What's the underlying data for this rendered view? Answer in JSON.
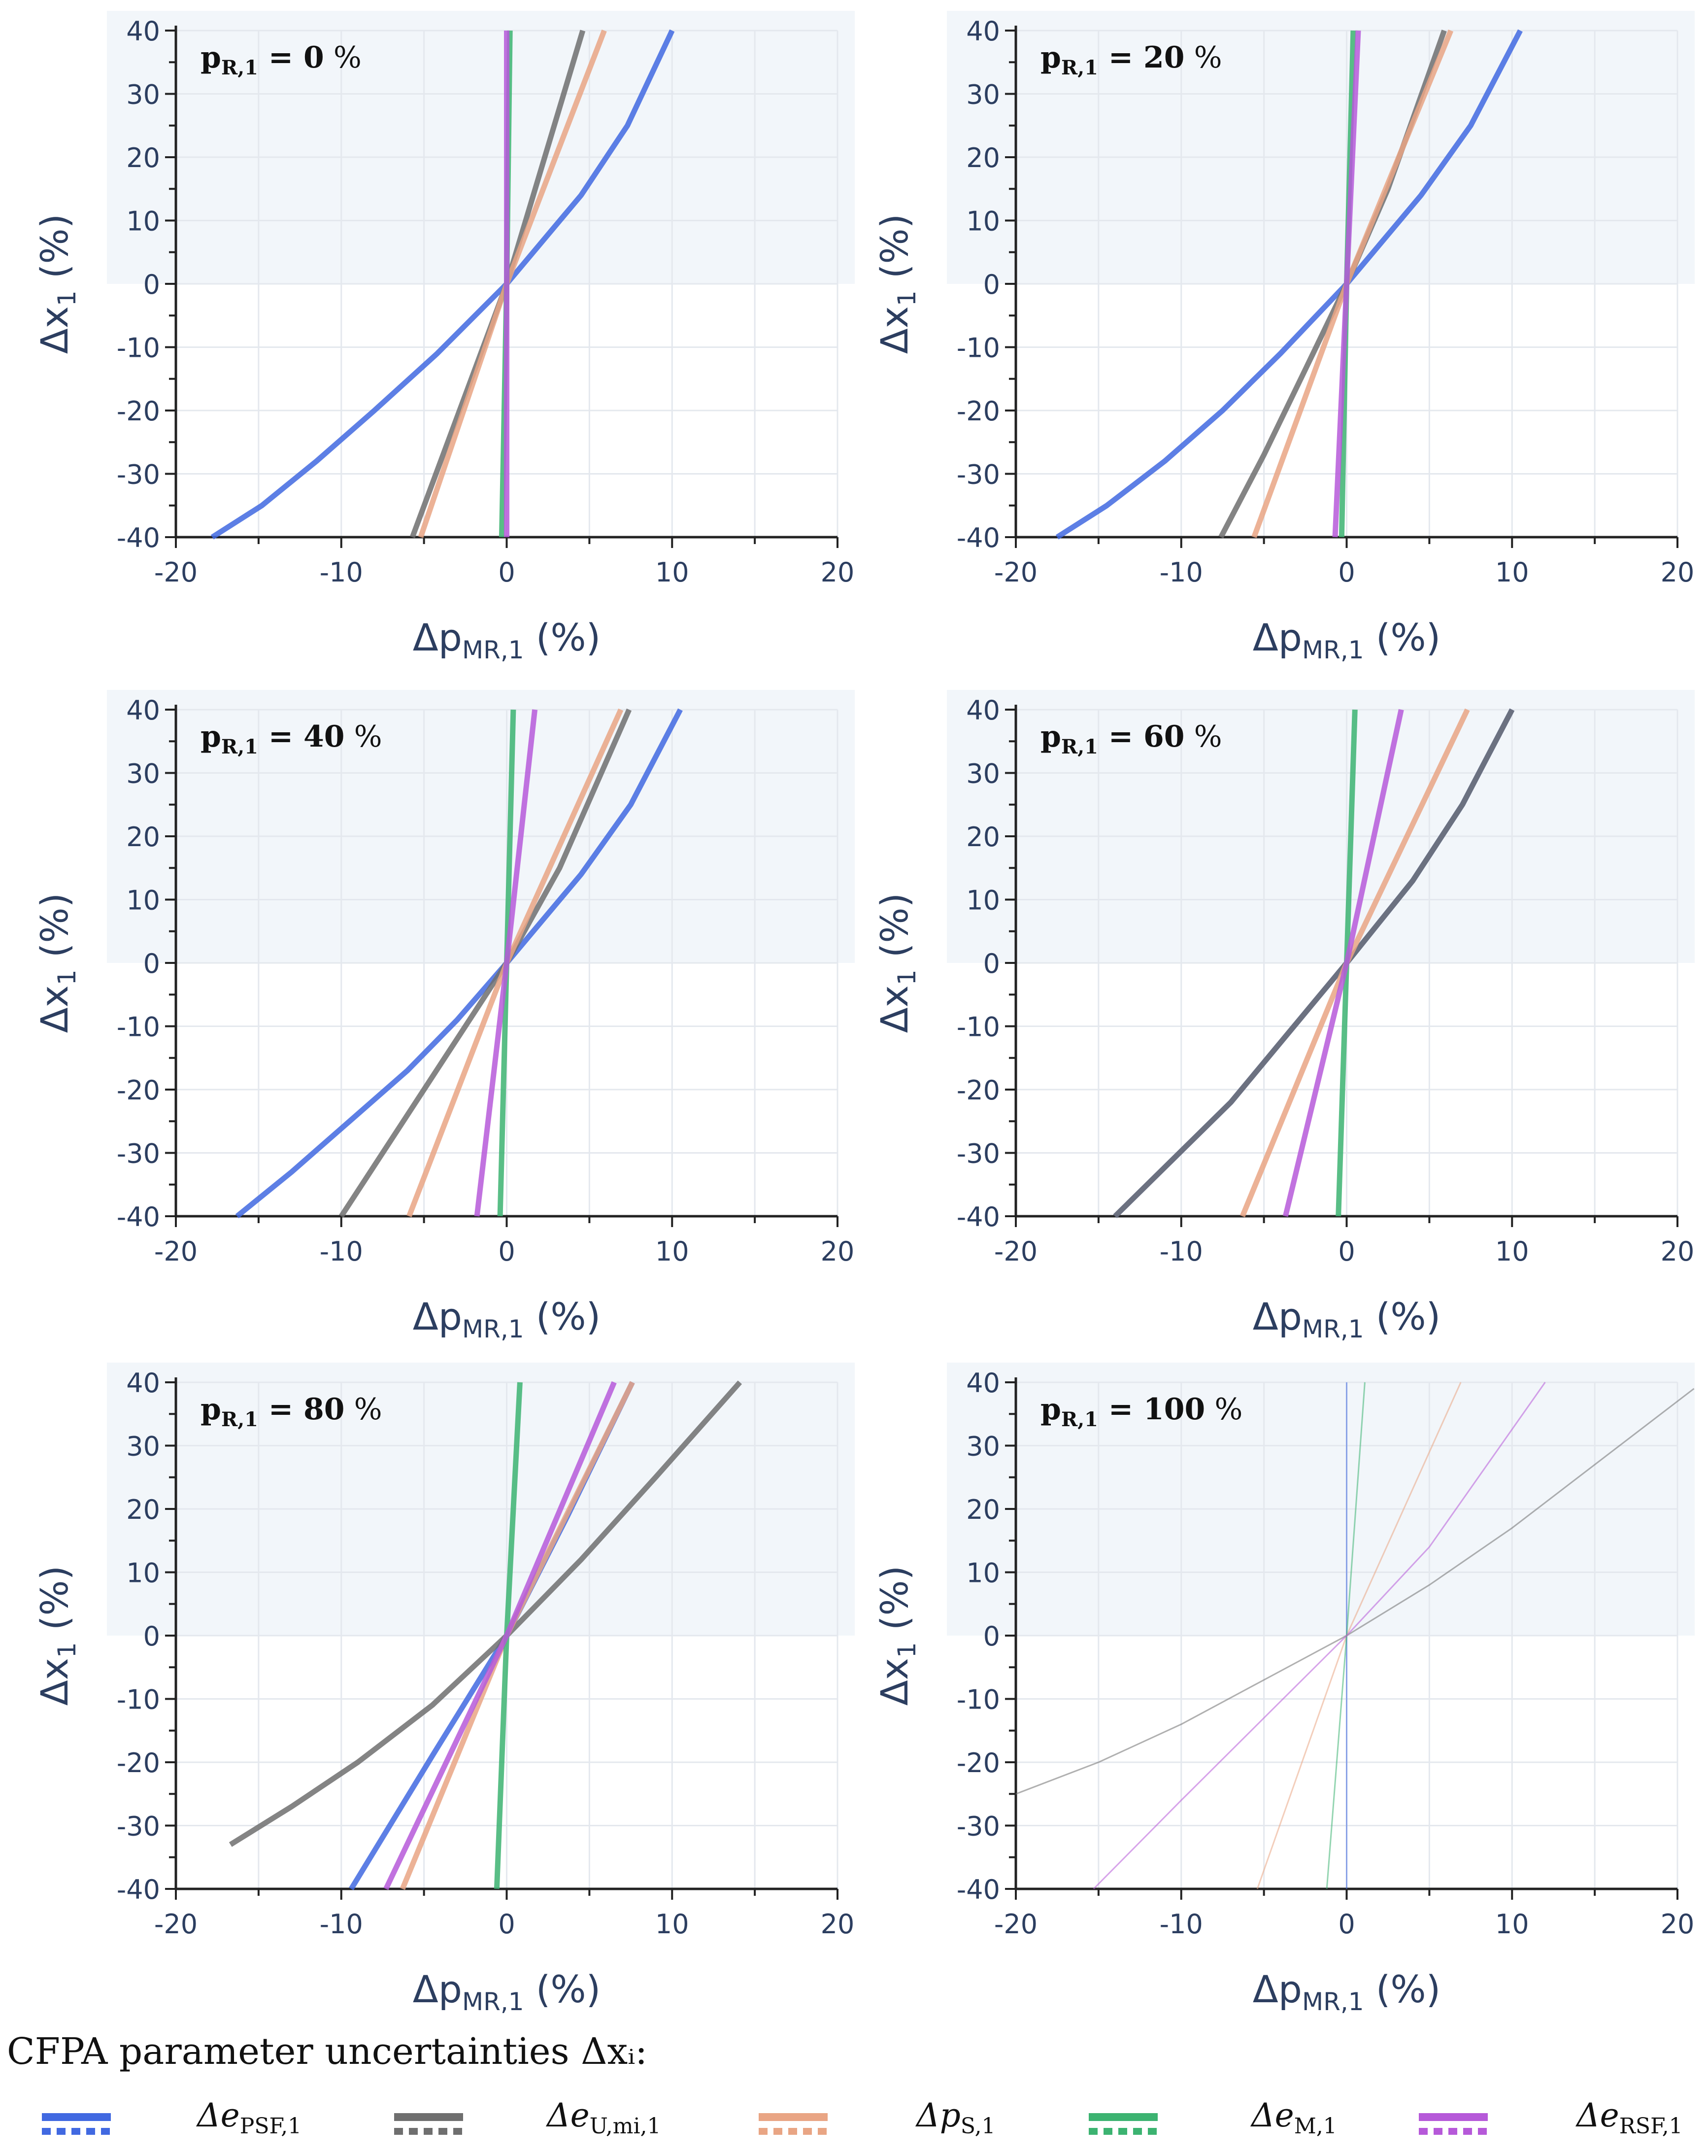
{
  "chart_data": [
    {
      "type": "line",
      "panel_label": "p_R,1 = 0 %",
      "label_main": "p",
      "label_sub": "R,1",
      "label_value": " = 0",
      "label_unit": " %",
      "xlabel": "Δp_MR,1 (%)",
      "ylabel": "Δx_1 (%)",
      "xlim": [
        -20,
        20
      ],
      "ylim": [
        -40,
        40
      ],
      "xticks": [
        "-20",
        "-10",
        "0",
        "10",
        "20"
      ],
      "yticks": [
        "40",
        "30",
        "20",
        "10",
        "0",
        "-10",
        "-20",
        "-30",
        "-40"
      ],
      "series": [
        {
          "name": "Δe_PSF,1",
          "color": "#4169e1",
          "x": [
            -17.8,
            -14.8,
            -11.5,
            -8,
            -4.2,
            0,
            4.5,
            7.3,
            10
          ],
          "y": [
            -40,
            -35,
            -28,
            -20,
            -11,
            0,
            14,
            25,
            40
          ]
        },
        {
          "name": "Δe_U,mi,1",
          "color": "#6f6f6f",
          "x": [
            -5.7,
            0,
            4.6
          ],
          "y": [
            -40,
            0,
            40
          ]
        },
        {
          "name": "Δp_S,1",
          "color": "#e9a584",
          "x": [
            -5.2,
            0,
            5.9
          ],
          "y": [
            -40,
            0,
            40
          ]
        },
        {
          "name": "Δe_M,1",
          "color": "#3cb371",
          "x": [
            -0.3,
            0,
            0.2
          ],
          "y": [
            -40,
            0,
            40
          ]
        },
        {
          "name": "Δe_RSF,1",
          "color": "#b659d9",
          "x": [
            0,
            0,
            0
          ],
          "y": [
            -40,
            0,
            40
          ]
        }
      ]
    },
    {
      "type": "line",
      "panel_label": "p_R,1 = 20 %",
      "label_main": "p",
      "label_sub": "R,1",
      "label_value": " = 20",
      "label_unit": " %",
      "xlabel": "Δp_MR,1 (%)",
      "ylabel": "Δx_1 (%)",
      "xlim": [
        -20,
        20
      ],
      "ylim": [
        -40,
        40
      ],
      "xticks": [
        "-20",
        "-10",
        "0",
        "10",
        "20"
      ],
      "yticks": [
        "40",
        "30",
        "20",
        "10",
        "0",
        "-10",
        "-20",
        "-30",
        "-40"
      ],
      "series": [
        {
          "name": "Δe_PSF,1",
          "color": "#4169e1",
          "x": [
            -17.5,
            -14.5,
            -11,
            -7.5,
            -4,
            0,
            4.5,
            7.5,
            10.5
          ],
          "y": [
            -40,
            -35,
            -28,
            -20,
            -11,
            0,
            14,
            25,
            40
          ]
        },
        {
          "name": "Δe_U,mi,1",
          "color": "#6f6f6f",
          "x": [
            -7.6,
            -5,
            -2.4,
            0,
            2.5,
            5.9
          ],
          "y": [
            -40,
            -27,
            -13,
            0,
            15,
            40
          ]
        },
        {
          "name": "Δp_S,1",
          "color": "#e9a584",
          "x": [
            -5.6,
            0,
            6.3
          ],
          "y": [
            -40,
            0,
            40
          ]
        },
        {
          "name": "Δe_M,1",
          "color": "#3cb371",
          "x": [
            -0.3,
            0,
            0.4
          ],
          "y": [
            -40,
            0,
            40
          ]
        },
        {
          "name": "Δe_RSF,1",
          "color": "#b659d9",
          "x": [
            -0.7,
            0,
            0.7
          ],
          "y": [
            -40,
            0,
            40
          ]
        }
      ]
    },
    {
      "type": "line",
      "panel_label": "p_R,1 = 40 %",
      "label_main": "p",
      "label_sub": "R,1",
      "label_value": " = 40",
      "label_unit": " %",
      "xlabel": "Δp_MR,1 (%)",
      "ylabel": "Δx_1 (%)",
      "xlim": [
        -20,
        20
      ],
      "ylim": [
        -40,
        40
      ],
      "xticks": [
        "-20",
        "-10",
        "0",
        "10",
        "20"
      ],
      "yticks": [
        "40",
        "30",
        "20",
        "10",
        "0",
        "-10",
        "-20",
        "-30",
        "-40"
      ],
      "series": [
        {
          "name": "Δe_PSF,1",
          "color": "#4169e1",
          "x": [
            -16.3,
            -13,
            -9.5,
            -6,
            -3,
            0,
            4.5,
            7.5,
            10.5
          ],
          "y": [
            -40,
            -33,
            -25,
            -17,
            -9,
            0,
            14,
            25,
            40
          ]
        },
        {
          "name": "Δe_U,mi,1",
          "color": "#6f6f6f",
          "x": [
            -10,
            -6.5,
            -3,
            0,
            3.2,
            7.4
          ],
          "y": [
            -40,
            -26,
            -12,
            0,
            15,
            40
          ]
        },
        {
          "name": "Δp_S,1",
          "color": "#e9a584",
          "x": [
            -5.9,
            0,
            6.9
          ],
          "y": [
            -40,
            0,
            40
          ]
        },
        {
          "name": "Δe_M,1",
          "color": "#3cb371",
          "x": [
            -0.4,
            0,
            0.4
          ],
          "y": [
            -40,
            0,
            40
          ]
        },
        {
          "name": "Δe_RSF,1",
          "color": "#b659d9",
          "x": [
            -1.8,
            0,
            1.7
          ],
          "y": [
            -40,
            0,
            40
          ]
        }
      ]
    },
    {
      "type": "line",
      "panel_label": "p_R,1 = 60 %",
      "label_main": "p",
      "label_sub": "R,1",
      "label_value": " = 60",
      "label_unit": " %",
      "xlabel": "Δp_MR,1 (%)",
      "ylabel": "Δx_1 (%)",
      "xlim": [
        -20,
        20
      ],
      "ylim": [
        -40,
        40
      ],
      "xticks": [
        "-20",
        "-10",
        "0",
        "10",
        "20"
      ],
      "yticks": [
        "40",
        "30",
        "20",
        "10",
        "0",
        "-10",
        "-20",
        "-30",
        "-40"
      ],
      "series": [
        {
          "name": "Δe_PSF,1",
          "color": "#4169e1",
          "x": [
            -14,
            -10.5,
            -7,
            -3.5,
            0,
            4,
            7,
            10
          ],
          "y": [
            -40,
            -31,
            -22,
            -11,
            0,
            13,
            25,
            40
          ]
        },
        {
          "name": "Δe_U,mi,1",
          "color": "#6f6f6f",
          "x": [
            -14,
            -10.5,
            -7,
            -3.5,
            0,
            4,
            7,
            10
          ],
          "y": [
            -40,
            -31,
            -22,
            -11,
            0,
            13,
            25,
            40
          ]
        },
        {
          "name": "Δp_S,1",
          "color": "#e9a584",
          "x": [
            -6.3,
            0,
            7.3
          ],
          "y": [
            -40,
            0,
            40
          ]
        },
        {
          "name": "Δe_M,1",
          "color": "#3cb371",
          "x": [
            -0.5,
            0,
            0.5
          ],
          "y": [
            -40,
            0,
            40
          ]
        },
        {
          "name": "Δe_RSF,1",
          "color": "#b659d9",
          "x": [
            -3.7,
            0,
            3.3
          ],
          "y": [
            -40,
            0,
            40
          ]
        }
      ]
    },
    {
      "type": "line",
      "panel_label": "p_R,1 = 80 %",
      "label_main": "p",
      "label_sub": "R,1",
      "label_value": " = 80",
      "label_unit": " %",
      "xlabel": "Δp_MR,1 (%)",
      "ylabel": "Δx_1 (%)",
      "xlim": [
        -20,
        20
      ],
      "ylim": [
        -40,
        40
      ],
      "xticks": [
        "-20",
        "-10",
        "0",
        "10",
        "20"
      ],
      "yticks": [
        "40",
        "30",
        "20",
        "10",
        "0",
        "-10",
        "-20",
        "-30",
        "-40"
      ],
      "series": [
        {
          "name": "Δe_PSF,1",
          "color": "#4169e1",
          "x": [
            -9.4,
            -4.5,
            0,
            3.7,
            7.6
          ],
          "y": [
            -40,
            -19,
            0,
            19,
            40
          ]
        },
        {
          "name": "Δe_U,mi,1",
          "color": "#6f6f6f",
          "x": [
            -16.7,
            -13,
            -9,
            -4.5,
            0,
            4.5,
            9,
            14.1
          ],
          "y": [
            -33,
            -27,
            -20,
            -11,
            0,
            12,
            25,
            40
          ]
        },
        {
          "name": "Δp_S,1",
          "color": "#e9a584",
          "x": [
            -6.3,
            0,
            7.6
          ],
          "y": [
            -40,
            0,
            40
          ]
        },
        {
          "name": "Δe_M,1",
          "color": "#3cb371",
          "x": [
            -0.6,
            0,
            0.8
          ],
          "y": [
            -40,
            0,
            40
          ]
        },
        {
          "name": "Δe_RSF,1",
          "color": "#b659d9",
          "x": [
            -7.3,
            0,
            6.5
          ],
          "y": [
            -40,
            0,
            40
          ]
        }
      ]
    },
    {
      "type": "line",
      "panel_label": "p_R,1 = 100 %",
      "label_main": "p",
      "label_sub": "R,1",
      "label_value": " = 100",
      "label_unit": " %",
      "xlabel": "Δp_MR,1 (%)",
      "ylabel": "Δx_1 (%)",
      "xlim": [
        -20,
        20
      ],
      "ylim": [
        -40,
        40
      ],
      "xticks": [
        "-20",
        "-10",
        "0",
        "10",
        "20"
      ],
      "yticks": [
        "40",
        "30",
        "20",
        "10",
        "0",
        "-10",
        "-20",
        "-30",
        "-40"
      ],
      "faded": true,
      "series": [
        {
          "name": "Δe_PSF,1",
          "color": "#4169e1",
          "x": [
            0,
            0,
            0
          ],
          "y": [
            -40,
            0,
            40
          ]
        },
        {
          "name": "Δe_U,mi,1",
          "color": "#6f6f6f",
          "x": [
            -20,
            -15,
            -10,
            -5,
            0,
            5,
            10,
            15,
            21
          ],
          "y": [
            -25,
            -20,
            -14,
            -7,
            0,
            8,
            17,
            27,
            39
          ]
        },
        {
          "name": "Δp_S,1",
          "color": "#e9a584",
          "x": [
            -5.4,
            0,
            6.9
          ],
          "y": [
            -40,
            0,
            40
          ]
        },
        {
          "name": "Δe_M,1",
          "color": "#3cb371",
          "x": [
            -1.2,
            0,
            1.1
          ],
          "y": [
            -40,
            0,
            40
          ]
        },
        {
          "name": "Δe_RSF,1",
          "color": "#b659d9",
          "x": [
            -15.3,
            -10,
            -5,
            0,
            5,
            12
          ],
          "y": [
            -40,
            -26,
            -13,
            0,
            14,
            40
          ]
        }
      ]
    }
  ],
  "axis_text": {
    "x_main": "Δp",
    "x_sub": "MR,1",
    "x_unit": " (%)",
    "y_main": "Δx",
    "y_sub": "1",
    "y_unit": " (%)"
  },
  "legend": {
    "title": "CFPA parameter uncertainties  Δxᵢ:",
    "items": [
      {
        "main": "Δe",
        "sub": "PSF,1",
        "color": "#4169e1"
      },
      {
        "main": "Δe",
        "sub": "U,mi,1",
        "color": "#6f6f6f"
      },
      {
        "main": "Δp",
        "sub": "S,1",
        "color": "#e9a584"
      },
      {
        "main": "Δe",
        "sub": "M,1",
        "color": "#3cb371"
      },
      {
        "main": "Δe",
        "sub": "RSF,1",
        "color": "#b659d9"
      }
    ]
  }
}
